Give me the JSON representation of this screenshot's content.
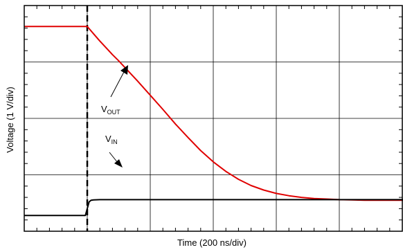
{
  "chart_data": {
    "type": "line",
    "xlabel": "Time (200 ns/div)",
    "ylabel": "Voltage (1 V/div)",
    "x_unit": "div",
    "y_unit": "div",
    "xlim": [
      0,
      6.1
    ],
    "ylim": [
      0,
      4
    ],
    "grid": true,
    "trigger_marker_x": 1,
    "series": [
      {
        "name": "V_OUT",
        "color": "#e00000",
        "x": [
          0,
          1.0,
          1.1,
          1.2,
          1.3,
          1.4,
          1.5,
          1.6,
          1.8,
          2.0,
          2.2,
          2.4,
          2.6,
          2.8,
          3.0,
          3.2,
          3.4,
          3.6,
          3.8,
          4.0,
          4.2,
          4.4,
          4.6,
          4.8,
          5.0,
          5.2,
          5.4,
          5.6,
          5.8,
          6.1
        ],
        "y": [
          3.63,
          3.63,
          3.5,
          3.37,
          3.25,
          3.13,
          3.02,
          2.9,
          2.66,
          2.41,
          2.16,
          1.9,
          1.66,
          1.43,
          1.23,
          1.06,
          0.92,
          0.81,
          0.73,
          0.67,
          0.63,
          0.6,
          0.58,
          0.57,
          0.56,
          0.555,
          0.55,
          0.55,
          0.55,
          0.55
        ]
      },
      {
        "name": "V_IN",
        "color": "#000000",
        "x": [
          0,
          0.97,
          1.0,
          1.03,
          1.06,
          1.1,
          1.2,
          1.5,
          2.0,
          3.0,
          4.0,
          5.0,
          6.1
        ],
        "y": [
          0.28,
          0.28,
          0.4,
          0.52,
          0.55,
          0.555,
          0.56,
          0.56,
          0.56,
          0.56,
          0.56,
          0.56,
          0.56
        ]
      }
    ],
    "annotations": [
      {
        "base": "V",
        "sub": "OUT",
        "series": "V_OUT"
      },
      {
        "base": "V",
        "sub": "IN",
        "series": "V_IN"
      }
    ]
  }
}
